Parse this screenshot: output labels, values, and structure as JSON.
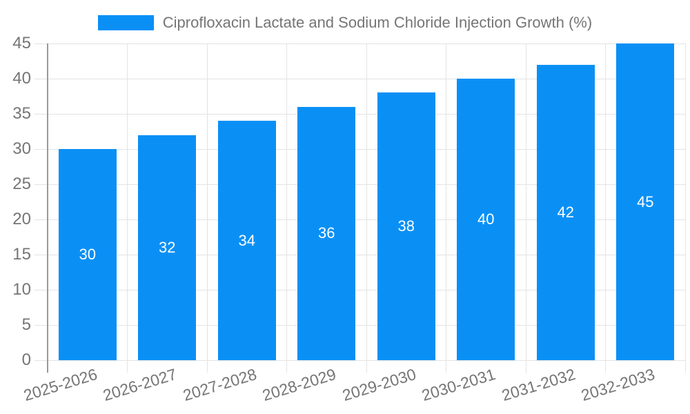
{
  "chart_data": {
    "type": "bar",
    "title": "Ciprofloxacin Lactate and Sodium Chloride Injection Growth (%)",
    "categories": [
      "2025-2026",
      "2026-2027",
      "2027-2028",
      "2028-2029",
      "2029-2030",
      "2030-2031",
      "2031-2032",
      "2032-2033"
    ],
    "values": [
      30,
      32,
      34,
      36,
      38,
      40,
      42,
      45
    ],
    "value_labels": [
      "30",
      "32",
      "34",
      "36",
      "38",
      "40",
      "42",
      "45"
    ],
    "xlabel": "",
    "ylabel": "",
    "ylim": [
      0,
      45
    ],
    "y_ticks": [
      0,
      5,
      10,
      15,
      20,
      25,
      30,
      35,
      40,
      45
    ],
    "grid": true,
    "legend_position": "top",
    "colors": {
      "bar": "#0a90f5",
      "value_label": "#ffffff",
      "axis_text": "#757575",
      "gridline": "#e3e3e3",
      "axis_line": "#999999"
    }
  }
}
